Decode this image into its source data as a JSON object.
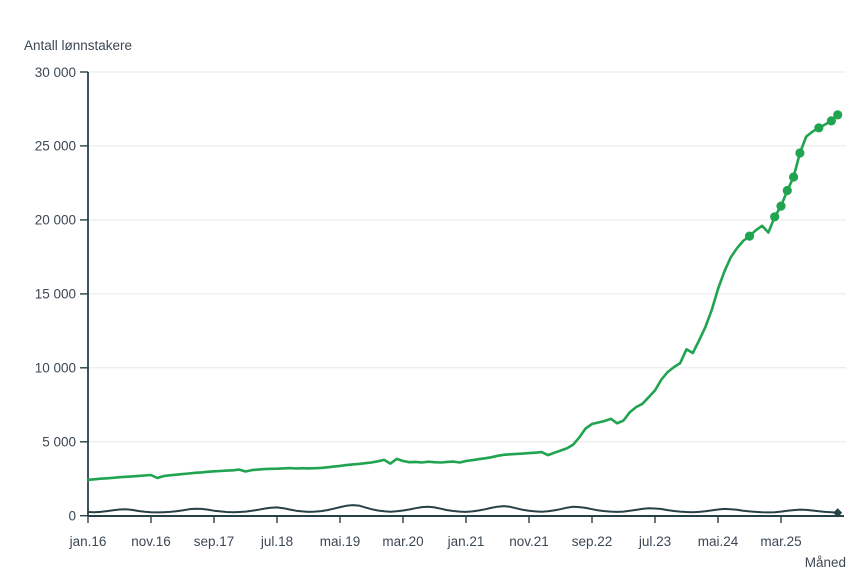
{
  "colors": {
    "series_green": "#20a44f",
    "series_dark": "#274247",
    "axis": "#274247",
    "grid": "#e7e7e7",
    "text": "#3c4854",
    "background": "#ffffff"
  },
  "chart_data": {
    "type": "line",
    "title": "Antall lønnstakere",
    "ylabel": "Antall lønnstakere",
    "xlabel": "Måned",
    "ylim": [
      0,
      30000
    ],
    "ytick_values": [
      0,
      5000,
      10000,
      15000,
      20000,
      25000,
      30000
    ],
    "ytick_labels": [
      "0",
      "5 000",
      "10 000",
      "15 000",
      "20 000",
      "25 000",
      "30 000"
    ],
    "grid": "horizontal-light",
    "legend": "none",
    "x_axis_note": "monthly values, index 0 = jan.16, index 119 = des.25, ticks every 10 months",
    "xtick_indices": [
      0,
      10,
      20,
      30,
      40,
      50,
      60,
      70,
      80,
      90,
      100,
      110
    ],
    "xtick_labels": [
      "jan.16",
      "nov.16",
      "sep.17",
      "jul.18",
      "mai.19",
      "mar.20",
      "jan.21",
      "nov.21",
      "sep.22",
      "jul.23",
      "mai.24",
      "mar.25"
    ],
    "series": [
      {
        "name": "series-green",
        "color": "#20a44f",
        "marker": "circle-on-recent-points",
        "marker_indices": [
          105,
          109,
          110,
          111,
          112,
          113,
          116,
          118,
          119
        ],
        "values": [
          2430,
          2460,
          2500,
          2530,
          2560,
          2600,
          2630,
          2660,
          2690,
          2720,
          2750,
          2550,
          2680,
          2730,
          2770,
          2810,
          2850,
          2900,
          2930,
          2970,
          3000,
          3020,
          3050,
          3070,
          3120,
          2990,
          3080,
          3120,
          3150,
          3170,
          3180,
          3200,
          3220,
          3190,
          3210,
          3200,
          3210,
          3230,
          3270,
          3320,
          3370,
          3420,
          3470,
          3500,
          3550,
          3600,
          3680,
          3770,
          3520,
          3840,
          3700,
          3620,
          3640,
          3600,
          3650,
          3620,
          3600,
          3640,
          3660,
          3600,
          3700,
          3750,
          3820,
          3880,
          3950,
          4050,
          4120,
          4150,
          4180,
          4200,
          4230,
          4260,
          4300,
          4100,
          4250,
          4400,
          4550,
          4800,
          5300,
          5900,
          6200,
          6300,
          6400,
          6550,
          6250,
          6435,
          7000,
          7340,
          7565,
          8015,
          8470,
          9195,
          9710,
          10050,
          10320,
          11250,
          11000,
          11855,
          12760,
          13900,
          15330,
          16500,
          17450,
          18080,
          18580,
          18905,
          19300,
          19600,
          19150,
          20210,
          20935,
          21985,
          22900,
          24525,
          25630,
          25970,
          26220,
          26450,
          26695,
          27100
        ]
      },
      {
        "name": "series-dark",
        "color": "#274247",
        "marker": "diamond-on-last-point",
        "marker_indices": [
          119
        ],
        "values": [
          250,
          230,
          260,
          310,
          370,
          420,
          430,
          390,
          320,
          270,
          240,
          220,
          240,
          260,
          300,
          360,
          430,
          470,
          460,
          410,
          340,
          290,
          250,
          230,
          250,
          280,
          330,
          400,
          480,
          540,
          560,
          510,
          420,
          340,
          290,
          260,
          280,
          310,
          380,
          470,
          580,
          670,
          720,
          680,
          560,
          440,
          350,
          300,
          270,
          300,
          350,
          420,
          510,
          580,
          600,
          560,
          470,
          380,
          320,
          280,
          260,
          290,
          350,
          430,
          530,
          610,
          650,
          600,
          500,
          400,
          330,
          290,
          270,
          300,
          360,
          440,
          540,
          600,
          580,
          530,
          440,
          360,
          310,
          280,
          260,
          280,
          330,
          390,
          460,
          510,
          490,
          450,
          380,
          320,
          280,
          250,
          240,
          260,
          300,
          360,
          420,
          460,
          440,
          400,
          340,
          290,
          260,
          230,
          220,
          240,
          280,
          330,
          380,
          410,
          390,
          350,
          300,
          260,
          230,
          200
        ]
      }
    ]
  }
}
